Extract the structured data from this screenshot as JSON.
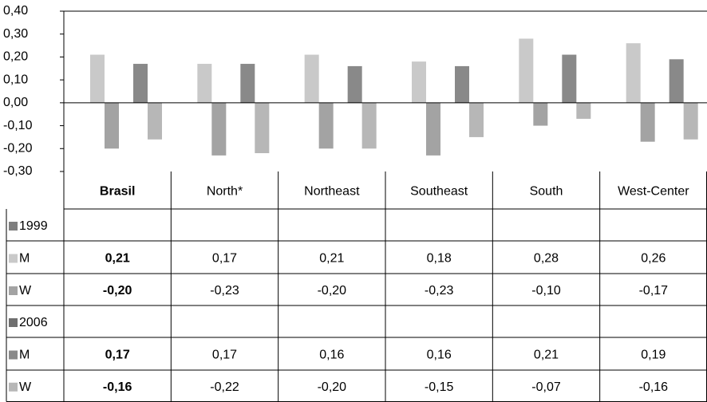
{
  "chart_data": {
    "type": "bar",
    "categories": [
      "Brasil",
      "North*",
      "Northeast",
      "Southeast",
      "South",
      "West-Center"
    ],
    "ylim": [
      -0.3,
      0.4
    ],
    "yticks": [
      {
        "value": 0.4,
        "label": "0,40"
      },
      {
        "value": 0.3,
        "label": "0,30"
      },
      {
        "value": 0.2,
        "label": "0,20"
      },
      {
        "value": 0.1,
        "label": "0,10"
      },
      {
        "value": 0.0,
        "label": "0,00"
      },
      {
        "value": -0.1,
        "label": "-0,10"
      },
      {
        "value": -0.2,
        "label": "-0,20"
      },
      {
        "value": -0.3,
        "label": "-0,30"
      }
    ],
    "groups": [
      {
        "name": "1999",
        "color": "#7f7f7f",
        "series": [
          {
            "name": "M",
            "color": "#c9c9c9",
            "values": [
              0.21,
              0.17,
              0.21,
              0.18,
              0.28,
              0.26
            ],
            "value_labels": [
              "0,21",
              "0,17",
              "0,21",
              "0,18",
              "0,28",
              "0,26"
            ]
          },
          {
            "name": "W",
            "color": "#a3a3a3",
            "values": [
              -0.2,
              -0.23,
              -0.2,
              -0.23,
              -0.1,
              -0.17
            ],
            "value_labels": [
              "-0,20",
              "-0,23",
              "-0,20",
              "-0,23",
              "-0,10",
              "-0,17"
            ]
          }
        ]
      },
      {
        "name": "2006",
        "color": "#6f6f6f",
        "series": [
          {
            "name": "M",
            "color": "#898989",
            "values": [
              0.17,
              0.17,
              0.16,
              0.16,
              0.21,
              0.19
            ],
            "value_labels": [
              "0,17",
              "0,17",
              "0,16",
              "0,16",
              "0,21",
              "0,19"
            ]
          },
          {
            "name": "W",
            "color": "#b7b7b7",
            "values": [
              -0.16,
              -0.22,
              -0.2,
              -0.15,
              -0.07,
              -0.16
            ],
            "value_labels": [
              "-0,16",
              "-0,22",
              "-0,20",
              "-0,15",
              "-0,07",
              "-0,16"
            ]
          }
        ]
      }
    ]
  }
}
